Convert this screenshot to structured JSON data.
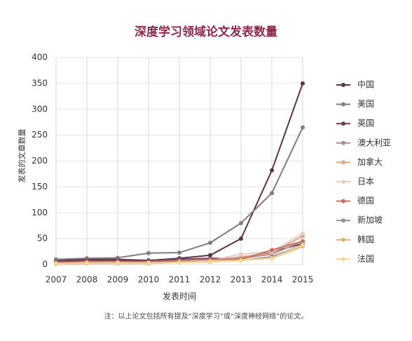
{
  "chart_data": {
    "type": "line",
    "title": "深度学习领域论文发表数量",
    "x_label": "发表时间",
    "y_label": "发表的文章数量",
    "note": "注：以上论文包括所有提及“深度学习”或“深度神经网络”的论文。",
    "x": [
      2007,
      2008,
      2009,
      2010,
      2011,
      2012,
      2013,
      2014,
      2015
    ],
    "xlim": [
      2007,
      2015
    ],
    "xticks": [
      2007,
      2008,
      2009,
      2010,
      2011,
      2012,
      2013,
      2014,
      2015
    ],
    "ylim": [
      0,
      400
    ],
    "yticks": [
      0,
      50,
      100,
      150,
      200,
      250,
      300,
      350,
      400
    ],
    "grid": true,
    "series": [
      {
        "name": "中国",
        "color": "#5a3446",
        "values": [
          8,
          10,
          10,
          8,
          12,
          18,
          50,
          182,
          350
        ]
      },
      {
        "name": "美国",
        "color": "#857a80",
        "values": [
          10,
          12,
          13,
          22,
          23,
          42,
          80,
          138,
          265
        ]
      },
      {
        "name": "英国",
        "color": "#6e3e52",
        "values": [
          5,
          8,
          8,
          8,
          10,
          12,
          12,
          25,
          40
        ]
      },
      {
        "name": "澳大利亚",
        "color": "#b48a9a",
        "values": [
          3,
          5,
          5,
          5,
          8,
          10,
          12,
          20,
          45
        ]
      },
      {
        "name": "加拿大",
        "color": "#d8aa88",
        "values": [
          2,
          4,
          4,
          4,
          6,
          8,
          15,
          22,
          55
        ]
      },
      {
        "name": "日本",
        "color": "#e8ccc4",
        "values": [
          2,
          3,
          3,
          3,
          5,
          8,
          20,
          25,
          60
        ]
      },
      {
        "name": "德国",
        "color": "#c47264",
        "values": [
          4,
          6,
          6,
          5,
          8,
          10,
          10,
          28,
          45
        ]
      },
      {
        "name": "新加坡",
        "color": "#9c8c98",
        "values": [
          1,
          2,
          2,
          3,
          5,
          6,
          8,
          15,
          38
        ]
      },
      {
        "name": "韩国",
        "color": "#e2b272",
        "values": [
          1,
          2,
          2,
          2,
          4,
          5,
          8,
          12,
          35
        ]
      },
      {
        "name": "法国",
        "color": "#f0da92",
        "values": [
          2,
          3,
          3,
          3,
          4,
          6,
          8,
          12,
          38
        ]
      }
    ]
  }
}
